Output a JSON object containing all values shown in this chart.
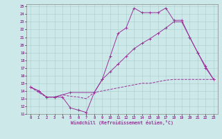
{
  "xlabel": "Windchill (Refroidissement éolien,°C)",
  "background_color": "#cce8e8",
  "line_color": "#993399",
  "xlim": [
    -0.5,
    23.5
  ],
  "ylim": [
    11,
    25.3
  ],
  "xticks": [
    0,
    1,
    2,
    3,
    4,
    5,
    6,
    7,
    8,
    9,
    10,
    11,
    12,
    13,
    14,
    15,
    16,
    17,
    18,
    19,
    20,
    21,
    22,
    23
  ],
  "yticks": [
    11,
    12,
    13,
    14,
    15,
    16,
    17,
    18,
    19,
    20,
    21,
    22,
    23,
    24,
    25
  ],
  "line1_x": [
    0,
    1,
    2,
    3,
    4,
    5,
    6,
    7,
    8,
    9,
    10,
    11,
    12,
    13,
    14,
    15,
    16,
    17,
    18,
    19,
    20,
    21,
    22,
    23
  ],
  "line1_y": [
    14.5,
    14.0,
    13.2,
    13.2,
    13.2,
    11.8,
    11.5,
    11.2,
    13.8,
    15.5,
    18.5,
    21.5,
    22.2,
    24.8,
    24.2,
    24.2,
    24.2,
    24.8,
    23.2,
    23.2,
    21.0,
    19.0,
    17.0,
    15.5
  ],
  "line2_x": [
    0,
    1,
    2,
    3,
    4,
    5,
    6,
    7,
    8,
    9,
    10,
    11,
    12,
    13,
    14,
    15,
    16,
    17,
    18,
    19,
    20,
    21,
    22,
    23
  ],
  "line2_y": [
    14.5,
    13.8,
    13.2,
    13.2,
    13.5,
    13.3,
    13.2,
    13.0,
    13.8,
    14.0,
    14.2,
    14.4,
    14.6,
    14.8,
    15.0,
    15.0,
    15.2,
    15.4,
    15.5,
    15.5,
    15.5,
    15.5,
    15.5,
    15.5
  ],
  "line3_x": [
    0,
    1,
    2,
    3,
    5,
    8,
    9,
    10,
    11,
    12,
    13,
    14,
    15,
    16,
    17,
    18,
    19,
    20,
    21,
    22,
    23
  ],
  "line3_y": [
    14.5,
    14.0,
    13.2,
    13.2,
    13.8,
    13.8,
    15.5,
    16.5,
    17.5,
    18.5,
    19.5,
    20.2,
    20.8,
    21.5,
    22.2,
    23.0,
    23.0,
    21.0,
    19.0,
    17.2,
    15.5
  ]
}
